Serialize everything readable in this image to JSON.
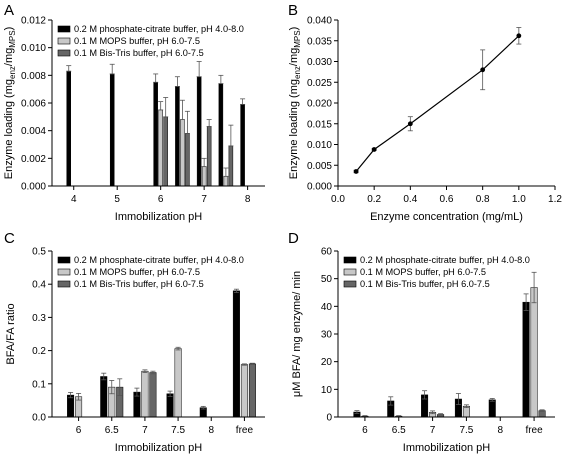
{
  "chart_data": [
    {
      "panel": "A",
      "type": "bar",
      "xlabel": "Immobilization pH",
      "ylabel": "Enzyme loading (mg",
      "ylabel_sub1": "enz",
      "ylabel_mid": "/mg",
      "ylabel_sub2": "MPS",
      "ylabel_end": ")",
      "xlim": [
        3.5,
        8.4
      ],
      "ylim": [
        0,
        0.012
      ],
      "xticks": [
        4,
        5,
        6,
        7,
        8
      ],
      "yticks": [
        0,
        0.002,
        0.004,
        0.006,
        0.008,
        0.01,
        0.012
      ],
      "ytick_labels": [
        "0.000",
        "0.002",
        "0.004",
        "0.006",
        "0.008",
        "0.010",
        "0.012"
      ],
      "legend": "top-left",
      "series": [
        {
          "name": "0.2 M phosphate-citrate buffer, pH 4.0-8.0",
          "color": "#000000",
          "x": [
            4.0,
            5.0,
            6.0,
            6.5,
            7.0,
            7.5,
            8.0
          ],
          "values": [
            0.0083,
            0.0081,
            0.0075,
            0.0072,
            0.0079,
            0.0074,
            0.0059
          ],
          "errors": [
            0.0004,
            0.0007,
            0.0006,
            0.0007,
            0.0011,
            0.0006,
            0.0004
          ]
        },
        {
          "name": "0.1 M MOPS buffer, pH 6.0-7.5",
          "color": "#c8c8c8",
          "x": [
            6.0,
            6.5,
            7.0,
            7.5
          ],
          "values": [
            0.0055,
            0.0048,
            0.0014,
            0.0007
          ],
          "errors": [
            0.0006,
            0.0014,
            0.0006,
            0.0006
          ]
        },
        {
          "name": "0.1 M Bis-Tris buffer, pH 6.0-7.5",
          "color": "#666666",
          "x": [
            6.0,
            6.5,
            7.0,
            7.5
          ],
          "values": [
            0.005,
            0.0038,
            0.0043,
            0.0029
          ],
          "errors": [
            0.0014,
            0.0016,
            0.0005,
            0.0015
          ]
        }
      ]
    },
    {
      "panel": "B",
      "type": "line",
      "xlabel": "Enzyme concentration (mg/mL)",
      "ylabel": "Enzyme loading (mg",
      "ylabel_sub1": "enz",
      "ylabel_mid": "/mg",
      "ylabel_sub2": "MPS",
      "ylabel_end": ")",
      "xlim": [
        0,
        1.2
      ],
      "ylim": [
        0,
        0.04
      ],
      "xticks": [
        0,
        0.2,
        0.4,
        0.6,
        0.8,
        1.0,
        1.2
      ],
      "xtick_labels": [
        "0.0",
        "0.2",
        "0.4",
        "0.6",
        "0.8",
        "1.0",
        "1.2"
      ],
      "yticks": [
        0,
        0.005,
        0.01,
        0.015,
        0.02,
        0.025,
        0.03,
        0.035,
        0.04
      ],
      "ytick_labels": [
        "0.000",
        "0.005",
        "0.010",
        "0.015",
        "0.020",
        "0.025",
        "0.030",
        "0.035",
        "0.040"
      ],
      "series": [
        {
          "color": "#000000",
          "x": [
            0.1,
            0.2,
            0.4,
            0.8,
            1.0
          ],
          "values": [
            0.0035,
            0.0088,
            0.015,
            0.028,
            0.0362
          ],
          "errors": [
            0.0003,
            0.0002,
            0.0017,
            0.0048,
            0.002
          ]
        }
      ]
    },
    {
      "panel": "C",
      "type": "bar",
      "xlabel": "Immobilization pH",
      "ylabel": "BFA/FA ratio",
      "categories": [
        "6",
        "6.5",
        "7",
        "7.5",
        "8",
        "free"
      ],
      "ylim": [
        0,
        0.5
      ],
      "yticks": [
        0,
        0.1,
        0.2,
        0.3,
        0.4,
        0.5
      ],
      "ytick_labels": [
        "0.0",
        "0.1",
        "0.2",
        "0.3",
        "0.4",
        "0.5"
      ],
      "legend": "top-left",
      "series": [
        {
          "name": "0.2 M phosphate-citrate buffer, pH 4.0-8.0",
          "color": "#000000",
          "values": [
            0.066,
            0.122,
            0.075,
            0.07,
            0.028,
            0.38
          ],
          "errors": [
            0.008,
            0.01,
            0.012,
            0.008,
            0.004,
            0.005
          ]
        },
        {
          "name": "0.1 M MOPS buffer, pH 6.0-7.5",
          "color": "#c8c8c8",
          "values": [
            0.061,
            0.09,
            0.138,
            0.206,
            null,
            0.158
          ],
          "errors": [
            0.01,
            0.02,
            0.004,
            0.004,
            null,
            0.002
          ]
        },
        {
          "name": "0.1 M Bis-Tris buffer, pH 6.0-7.5",
          "color": "#666666",
          "values": [
            null,
            0.09,
            0.134,
            null,
            null,
            0.16
          ],
          "errors": [
            null,
            0.025,
            0.004,
            null,
            null,
            0.002
          ]
        }
      ]
    },
    {
      "panel": "D",
      "type": "bar",
      "xlabel": "Immobilization pH",
      "ylabel": "μM BFA/ mg enzyme/ min",
      "categories": [
        "6",
        "6.5",
        "7",
        "7.5",
        "8",
        "free"
      ],
      "ylim": [
        0,
        60
      ],
      "yticks": [
        0,
        10,
        20,
        30,
        40,
        50,
        60
      ],
      "ytick_labels": [
        "0",
        "10",
        "20",
        "30",
        "40",
        "50",
        "60"
      ],
      "legend": "top-left",
      "series": [
        {
          "name": "0.2 M phosphate-citrate buffer, pH 4.0-8.0",
          "color": "#000000",
          "values": [
            1.8,
            5.8,
            8.0,
            6.5,
            6.2,
            41.5
          ],
          "errors": [
            0.5,
            1.5,
            1.5,
            2.0,
            0.5,
            3.0
          ]
        },
        {
          "name": "0.1 M MOPS buffer, pH 6.0-7.5",
          "color": "#c8c8c8",
          "values": [
            0.3,
            0.3,
            1.7,
            3.9,
            null,
            46.8
          ],
          "errors": [
            0.2,
            0.2,
            0.5,
            0.5,
            null,
            5.5
          ]
        },
        {
          "name": "0.1 M Bis-Tris buffer, pH 6.0-7.5",
          "color": "#666666",
          "values": [
            null,
            null,
            0.9,
            null,
            null,
            2.3
          ],
          "errors": [
            null,
            null,
            0.3,
            null,
            null,
            0.3
          ]
        }
      ]
    }
  ]
}
